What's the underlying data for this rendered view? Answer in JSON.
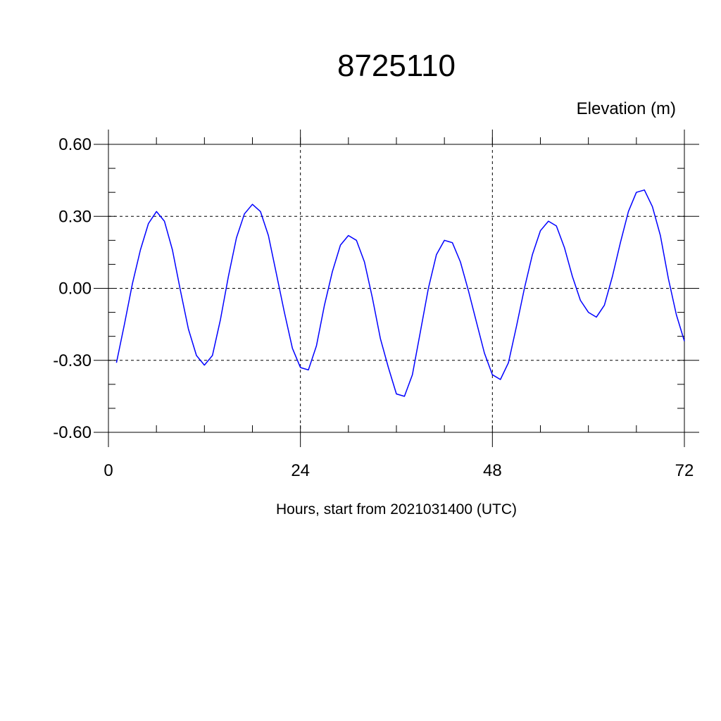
{
  "chart_data": {
    "type": "line",
    "title": "8725110",
    "ylabel": "Elevation (m)",
    "xlabel": "Hours, start from 2021031400 (UTC)",
    "xlim": [
      0,
      72
    ],
    "ylim": [
      -0.6,
      0.6
    ],
    "xticks": [
      0,
      24,
      48,
      72
    ],
    "xtick_labels": [
      "0",
      "24",
      "48",
      "72"
    ],
    "yticks": [
      -0.6,
      -0.3,
      0.0,
      0.3,
      0.6
    ],
    "ytick_labels": [
      "-0.60",
      "-0.30",
      "0.00",
      "0.30",
      "0.60"
    ],
    "grid": true,
    "series": [
      {
        "color": "#0000ff",
        "x": [
          1,
          2,
          3,
          4,
          5,
          6,
          7,
          8,
          9,
          10,
          11,
          12,
          13,
          14,
          15,
          16,
          17,
          18,
          19,
          20,
          21,
          22,
          23,
          24,
          25,
          26,
          27,
          28,
          29,
          30,
          31,
          32,
          33,
          34,
          35,
          36,
          37,
          38,
          39,
          40,
          41,
          42,
          43,
          44,
          45,
          46,
          47,
          48,
          49,
          50,
          51,
          52,
          53,
          54,
          55,
          56,
          57,
          58,
          59,
          60,
          61,
          62,
          63,
          64,
          65,
          66,
          67,
          68,
          69,
          70,
          71,
          72
        ],
        "values": [
          -0.31,
          -0.15,
          0.02,
          0.16,
          0.27,
          0.32,
          0.28,
          0.16,
          -0.01,
          -0.17,
          -0.28,
          -0.32,
          -0.28,
          -0.13,
          0.05,
          0.21,
          0.31,
          0.35,
          0.32,
          0.22,
          0.06,
          -0.1,
          -0.25,
          -0.33,
          -0.34,
          -0.24,
          -0.07,
          0.07,
          0.18,
          0.22,
          0.2,
          0.11,
          -0.04,
          -0.21,
          -0.33,
          -0.44,
          -0.45,
          -0.36,
          -0.18,
          0.0,
          0.14,
          0.2,
          0.19,
          0.11,
          -0.01,
          -0.14,
          -0.27,
          -0.36,
          -0.38,
          -0.31,
          -0.16,
          0.0,
          0.14,
          0.24,
          0.28,
          0.26,
          0.17,
          0.05,
          -0.05,
          -0.1,
          -0.12,
          -0.07,
          0.05,
          0.19,
          0.32,
          0.4,
          0.41,
          0.34,
          0.22,
          0.04,
          -0.11,
          -0.22
        ]
      }
    ]
  }
}
